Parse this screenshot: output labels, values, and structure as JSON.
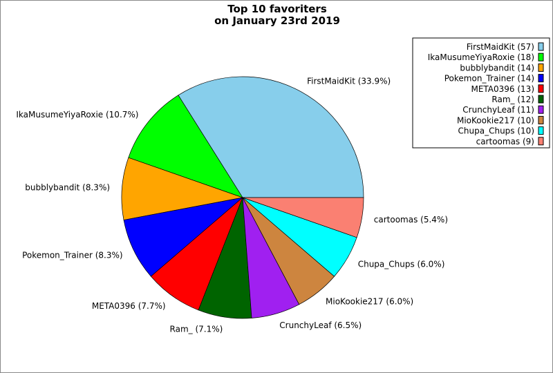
{
  "chart_data": {
    "type": "pie",
    "title": [
      "Top 10 favoriters",
      "on January 23rd 2019"
    ],
    "start_angle_deg": 0,
    "direction": "counterclockwise",
    "legend_position": "top-right",
    "slices": [
      {
        "label": "FirstMaidKit",
        "value": 57,
        "percent_label": "FirstMaidKit (33.9%)",
        "legend_label": "FirstMaidKit (57)",
        "color": "#87CEEB"
      },
      {
        "label": "IkaMusumeYiyaRoxie",
        "value": 18,
        "percent_label": "IkaMusumeYiyaRoxie (10.7%)",
        "legend_label": "IkaMusumeYiyaRoxie (18)",
        "color": "#00FF00"
      },
      {
        "label": "bubblybandit",
        "value": 14,
        "percent_label": "bubblybandit (8.3%)",
        "legend_label": "bubblybandit (14)",
        "color": "#FFA500"
      },
      {
        "label": "Pokemon_Trainer",
        "value": 14,
        "percent_label": "Pokemon_Trainer (8.3%)",
        "legend_label": "Pokemon_Trainer (14)",
        "color": "#0000FF"
      },
      {
        "label": "META0396",
        "value": 13,
        "percent_label": "META0396 (7.7%)",
        "legend_label": "META0396 (13)",
        "color": "#FF0000"
      },
      {
        "label": "Ram_",
        "value": 12,
        "percent_label": "Ram_ (7.1%)",
        "legend_label": "Ram_ (12)",
        "color": "#006400"
      },
      {
        "label": "CrunchyLeaf",
        "value": 11,
        "percent_label": "CrunchyLeaf (6.5%)",
        "legend_label": "CrunchyLeaf (11)",
        "color": "#A020F0"
      },
      {
        "label": "MioKookie217",
        "value": 10,
        "percent_label": "MioKookie217 (6.0%)",
        "legend_label": "MioKookie217 (10)",
        "color": "#CD853F"
      },
      {
        "label": "Chupa_Chups",
        "value": 10,
        "percent_label": "Chupa_Chups (6.0%)",
        "legend_label": "Chupa_Chups (10)",
        "color": "#00FFFF"
      },
      {
        "label": "cartoomas",
        "value": 9,
        "percent_label": "cartoomas (5.4%)",
        "legend_label": "cartoomas (9)",
        "color": "#FA8072"
      }
    ]
  }
}
